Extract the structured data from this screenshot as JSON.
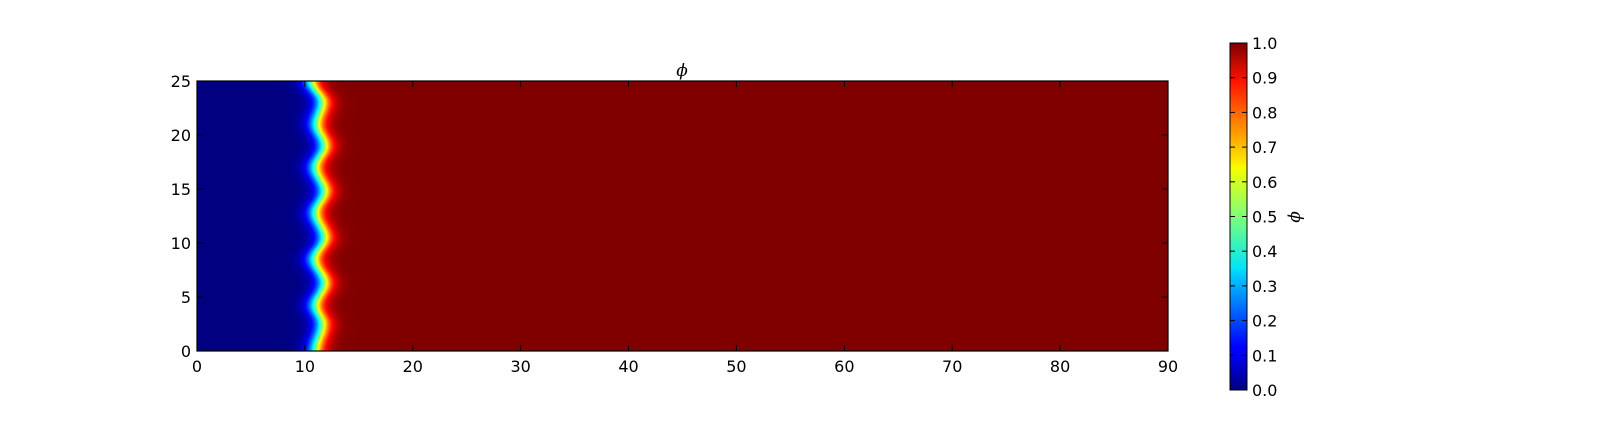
{
  "chart_data": {
    "type": "heatmap",
    "title": "ϕ",
    "xlabel": "",
    "ylabel": "",
    "xlim": [
      0,
      90
    ],
    "ylim": [
      0,
      25
    ],
    "x_ticks": [
      "0",
      "10",
      "20",
      "30",
      "40",
      "50",
      "60",
      "70",
      "80",
      "90"
    ],
    "y_ticks": [
      "0",
      "5",
      "10",
      "15",
      "20",
      "25"
    ],
    "colormap": "jet",
    "colorbar": {
      "label": "ϕ",
      "range": [
        0.0,
        1.0
      ],
      "ticks": [
        "0.0",
        "0.1",
        "0.2",
        "0.3",
        "0.4",
        "0.5",
        "0.6",
        "0.7",
        "0.8",
        "0.9",
        "1.0"
      ]
    },
    "field": {
      "low_value": 0.0,
      "high_value": 1.0,
      "interface_width": 1.0,
      "interface_x_profile": [
        {
          "y": 0,
          "x": 11.0
        },
        {
          "y": 2.5,
          "x": 11.6
        },
        {
          "y": 4.2,
          "x": 11.0
        },
        {
          "y": 6.3,
          "x": 11.8
        },
        {
          "y": 8.5,
          "x": 10.9
        },
        {
          "y": 10.5,
          "x": 11.8
        },
        {
          "y": 12.8,
          "x": 11.0
        },
        {
          "y": 14.8,
          "x": 11.8
        },
        {
          "y": 17.0,
          "x": 11.0
        },
        {
          "y": 19.0,
          "x": 11.8
        },
        {
          "y": 21.0,
          "x": 11.1
        },
        {
          "y": 23.0,
          "x": 11.6
        },
        {
          "y": 25,
          "x": 10.6
        }
      ]
    }
  }
}
